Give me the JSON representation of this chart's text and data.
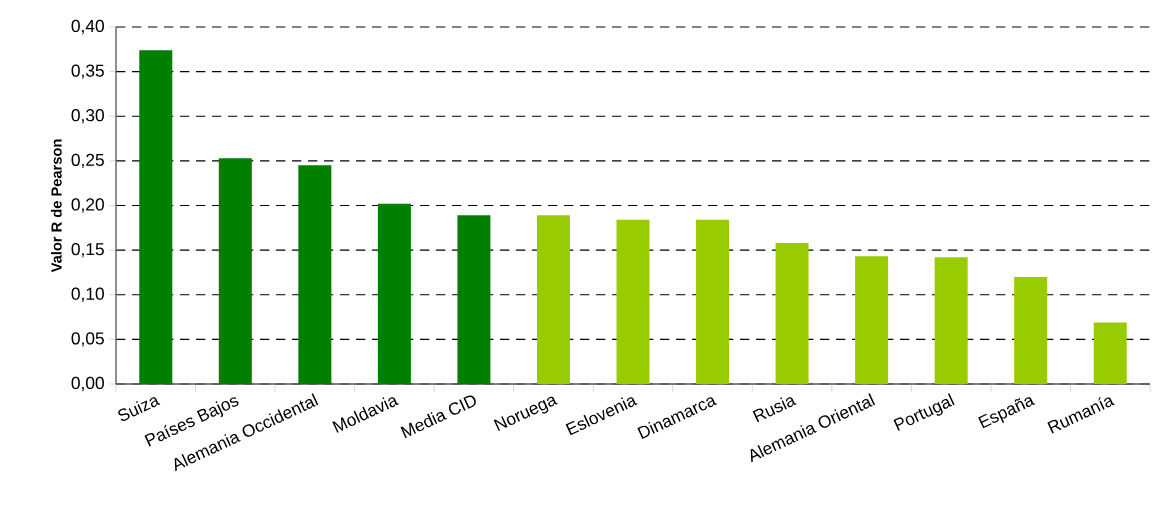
{
  "chart_data": {
    "type": "bar",
    "ylabel": "Valor R de Pearson",
    "categories": [
      "Suiza",
      "Países Bajos",
      "Alemania Occidental",
      "Moldavia",
      "Media CID",
      "Noruega",
      "Eslovenia",
      "Dinamarca",
      "Rusia",
      "Alemania Oriental",
      "Portugal",
      "España",
      "Rumanía"
    ],
    "values": [
      0.374,
      0.253,
      0.245,
      0.202,
      0.189,
      0.189,
      0.184,
      0.184,
      0.158,
      0.143,
      0.142,
      0.12,
      0.069
    ],
    "colors": [
      "#007f00",
      "#007f00",
      "#007f00",
      "#007f00",
      "#007f00",
      "#99cc00",
      "#99cc00",
      "#99cc00",
      "#99cc00",
      "#99cc00",
      "#99cc00",
      "#99cc00",
      "#99cc00"
    ],
    "ylim": [
      0,
      0.4
    ],
    "yticks": [
      {
        "value": 0,
        "label": "0,00"
      },
      {
        "value": 0.05,
        "label": "0,05"
      },
      {
        "value": 0.1,
        "label": "0,10"
      },
      {
        "value": 0.15,
        "label": "0,15"
      },
      {
        "value": 0.2,
        "label": "0,20"
      },
      {
        "value": 0.25,
        "label": "0,25"
      },
      {
        "value": 0.3,
        "label": "0,30"
      },
      {
        "value": 0.35,
        "label": "0,35"
      },
      {
        "value": 0.4,
        "label": "0,40"
      }
    ],
    "grid": "y"
  }
}
